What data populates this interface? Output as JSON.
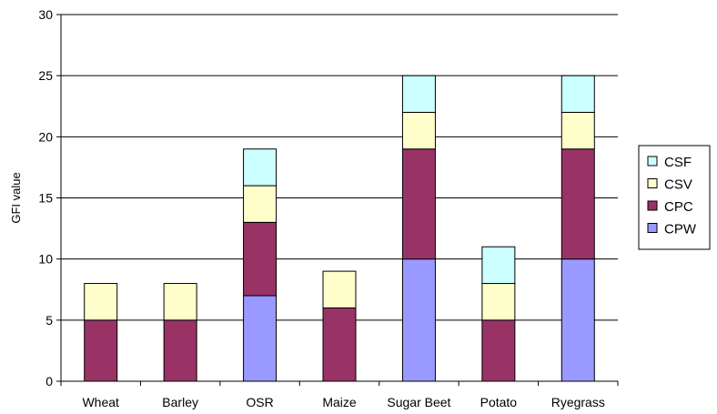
{
  "chart_data": {
    "type": "bar",
    "stacked": true,
    "categories": [
      "Wheat",
      "Barley",
      "OSR",
      "Maize",
      "Sugar Beet",
      "Potato",
      "Ryegrass"
    ],
    "series": [
      {
        "name": "CPW",
        "color": "#9999ff",
        "values": [
          0,
          0,
          7,
          0,
          10,
          0,
          10
        ]
      },
      {
        "name": "CPC",
        "color": "#993366",
        "values": [
          5,
          5,
          6,
          6,
          9,
          5,
          9
        ]
      },
      {
        "name": "CSV",
        "color": "#ffffcc",
        "values": [
          3,
          3,
          3,
          3,
          3,
          3,
          3
        ]
      },
      {
        "name": "CSF",
        "color": "#ccffff",
        "values": [
          0,
          0,
          3,
          0,
          3,
          3,
          3
        ]
      }
    ],
    "legend_order": [
      "CSF",
      "CSV",
      "CPC",
      "CPW"
    ],
    "ylabel": "GFI value",
    "ylim": [
      0,
      30
    ],
    "yticks": [
      0,
      5,
      10,
      15,
      20,
      25,
      30
    ],
    "grid": true,
    "legend_position": "right"
  }
}
